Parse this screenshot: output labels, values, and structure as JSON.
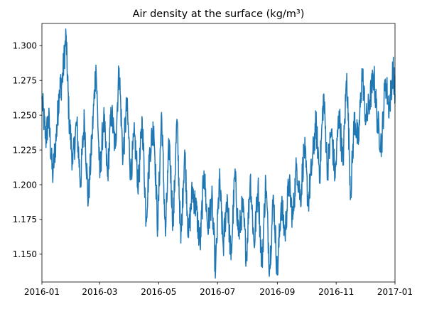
{
  "chart_data": {
    "type": "line",
    "title": "Air density at the surface (kg/m³)",
    "xlabel": "",
    "ylabel": "",
    "x_range": [
      "2016-01-01",
      "2017-01-01"
    ],
    "ylim": [
      1.13,
      1.316
    ],
    "x_ticks": [
      "2016-01",
      "2016-03",
      "2016-05",
      "2016-07",
      "2016-09",
      "2016-11",
      "2017-01"
    ],
    "y_ticks": [
      "1.150",
      "1.175",
      "1.200",
      "1.225",
      "1.250",
      "1.275",
      "1.300"
    ],
    "grid": false,
    "legend": "none",
    "color": "#1f77b4",
    "series": [
      {
        "x": [
          "2016-01-01",
          "2016-01-05",
          "2016-01-08",
          "2016-01-12",
          "2016-01-16",
          "2016-01-19",
          "2016-01-22",
          "2016-01-26",
          "2016-01-29",
          "2016-02-02",
          "2016-02-06",
          "2016-02-10",
          "2016-02-14",
          "2016-02-18",
          "2016-02-22",
          "2016-02-26",
          "2016-03-01",
          "2016-03-05",
          "2016-03-09",
          "2016-03-13",
          "2016-03-17",
          "2016-03-21",
          "2016-03-25",
          "2016-03-29",
          "2016-04-02",
          "2016-04-06",
          "2016-04-10",
          "2016-04-14",
          "2016-04-18",
          "2016-04-22",
          "2016-04-26",
          "2016-04-30",
          "2016-05-04",
          "2016-05-08",
          "2016-05-12",
          "2016-05-16",
          "2016-05-20",
          "2016-05-24",
          "2016-05-28",
          "2016-06-01",
          "2016-06-05",
          "2016-06-09",
          "2016-06-13",
          "2016-06-17",
          "2016-06-21",
          "2016-06-25",
          "2016-06-29",
          "2016-07-03",
          "2016-07-07",
          "2016-07-11",
          "2016-07-15",
          "2016-07-19",
          "2016-07-23",
          "2016-07-27",
          "2016-07-31",
          "2016-08-04",
          "2016-08-08",
          "2016-08-12",
          "2016-08-16",
          "2016-08-20",
          "2016-08-24",
          "2016-08-28",
          "2016-09-01",
          "2016-09-05",
          "2016-09-09",
          "2016-09-13",
          "2016-09-17",
          "2016-09-21",
          "2016-09-25",
          "2016-09-29",
          "2016-10-03",
          "2016-10-07",
          "2016-10-11",
          "2016-10-15",
          "2016-10-19",
          "2016-10-23",
          "2016-10-27",
          "2016-10-31",
          "2016-11-04",
          "2016-11-08",
          "2016-11-12",
          "2016-11-16",
          "2016-11-20",
          "2016-11-24",
          "2016-11-28",
          "2016-12-02",
          "2016-12-06",
          "2016-12-10",
          "2016-12-14",
          "2016-12-18",
          "2016-12-22",
          "2016-12-26",
          "2016-12-30",
          "2017-01-01"
        ],
        "y": [
          1.262,
          1.233,
          1.248,
          1.206,
          1.236,
          1.268,
          1.274,
          1.307,
          1.249,
          1.215,
          1.245,
          1.201,
          1.248,
          1.187,
          1.234,
          1.286,
          1.205,
          1.249,
          1.206,
          1.253,
          1.226,
          1.284,
          1.219,
          1.258,
          1.208,
          1.235,
          1.199,
          1.247,
          1.175,
          1.226,
          1.242,
          1.168,
          1.252,
          1.163,
          1.232,
          1.17,
          1.247,
          1.158,
          1.225,
          1.162,
          1.197,
          1.182,
          1.156,
          1.21,
          1.168,
          1.191,
          1.138,
          1.204,
          1.155,
          1.193,
          1.146,
          1.208,
          1.163,
          1.185,
          1.148,
          1.206,
          1.156,
          1.199,
          1.141,
          1.203,
          1.139,
          1.192,
          1.135,
          1.187,
          1.164,
          1.202,
          1.175,
          1.215,
          1.189,
          1.228,
          1.187,
          1.215,
          1.244,
          1.208,
          1.265,
          1.211,
          1.239,
          1.205,
          1.253,
          1.214,
          1.28,
          1.193,
          1.249,
          1.229,
          1.282,
          1.245,
          1.261,
          1.279,
          1.244,
          1.228,
          1.276,
          1.255,
          1.283,
          1.265
        ]
      }
    ]
  }
}
